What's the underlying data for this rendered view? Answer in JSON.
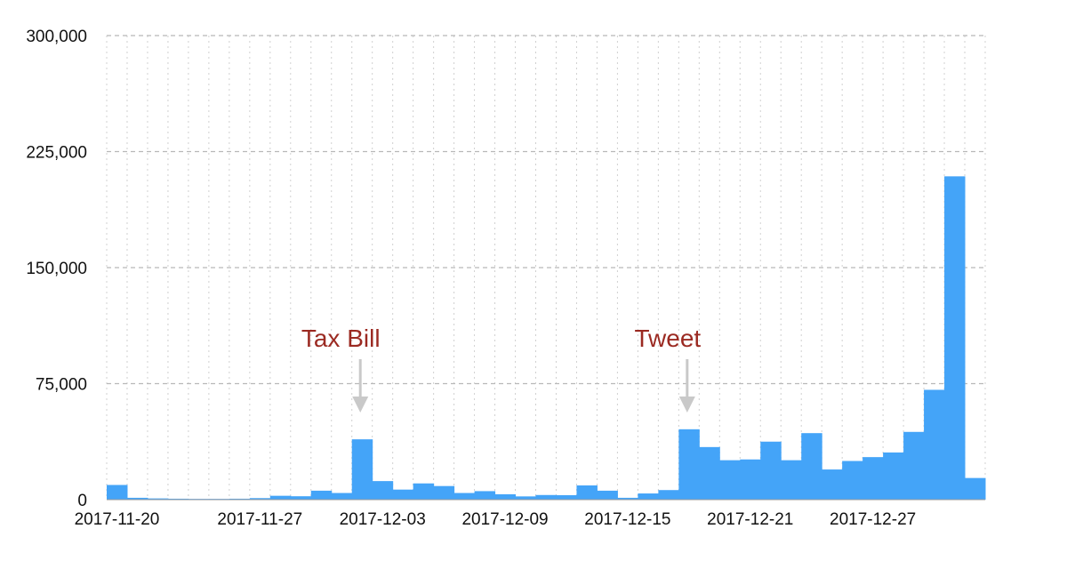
{
  "chart_data": {
    "type": "bar",
    "title": "",
    "xlabel": "",
    "ylabel": "",
    "ylim": [
      0,
      300000
    ],
    "y_ticks": [
      "0",
      "75,000",
      "150,000",
      "225,000",
      "300,000"
    ],
    "y_tick_values": [
      0,
      75000,
      150000,
      225000,
      300000
    ],
    "grid": true,
    "grid_style": "dashed horizontal, dotted vertical",
    "x_tick_labels": [
      "2017-11-20",
      "2017-11-27",
      "2017-12-03",
      "2017-12-09",
      "2017-12-15",
      "2017-12-21",
      "2017-12-27"
    ],
    "categories": [
      "2017-11-20",
      "2017-11-21",
      "2017-11-22",
      "2017-11-23",
      "2017-11-24",
      "2017-11-25",
      "2017-11-26",
      "2017-11-27",
      "2017-11-28",
      "2017-11-29",
      "2017-11-30",
      "2017-12-01",
      "2017-12-02",
      "2017-12-03",
      "2017-12-04",
      "2017-12-05",
      "2017-12-06",
      "2017-12-07",
      "2017-12-08",
      "2017-12-09",
      "2017-12-10",
      "2017-12-11",
      "2017-12-12",
      "2017-12-13",
      "2017-12-14",
      "2017-12-15",
      "2017-12-16",
      "2017-12-17",
      "2017-12-18",
      "2017-12-19",
      "2017-12-20",
      "2017-12-21",
      "2017-12-22",
      "2017-12-23",
      "2017-12-24",
      "2017-12-25",
      "2017-12-26",
      "2017-12-27",
      "2017-12-28",
      "2017-12-29",
      "2017-12-30",
      "2017-12-31",
      "2018-01-01"
    ],
    "values": [
      9500,
      1200,
      800,
      600,
      500,
      500,
      600,
      1000,
      2500,
      2200,
      5800,
      4300,
      39000,
      12000,
      6500,
      10500,
      8800,
      4300,
      5500,
      3500,
      2100,
      3000,
      2900,
      9200,
      5800,
      1200,
      4000,
      6200,
      45500,
      34000,
      25500,
      26000,
      37500,
      25500,
      43000,
      19500,
      25000,
      27500,
      30500,
      43800,
      71000,
      209000,
      14000
    ],
    "colors": {
      "bar": "#44a4f8",
      "annotation": "#9b2a22",
      "arrow": "#c9c9c9",
      "grid": "#b8b8b8"
    },
    "annotations": [
      {
        "text": "Tax Bill",
        "date": "2017-12-02"
      },
      {
        "text": "Tweet",
        "date": "2017-12-18"
      }
    ]
  }
}
